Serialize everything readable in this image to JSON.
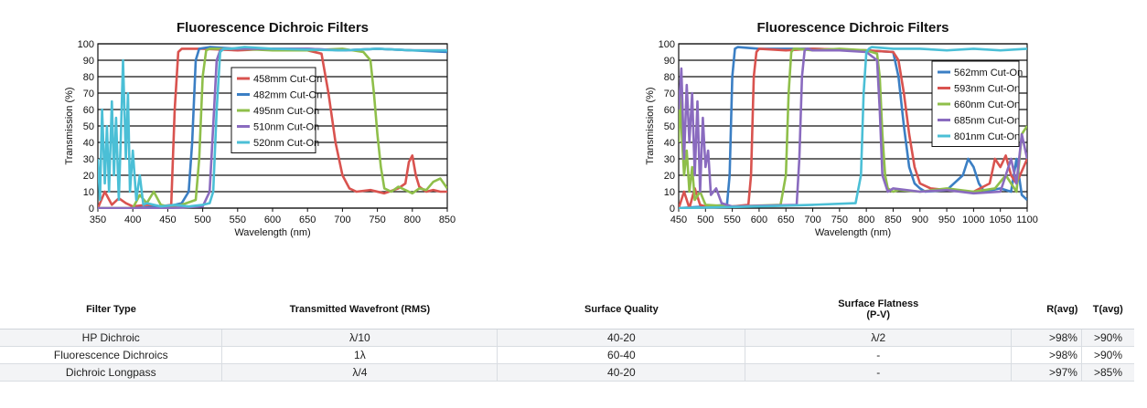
{
  "chart_data": [
    {
      "type": "line",
      "title": "Fluorescence Dichroic Filters",
      "xlabel": "Wavelength (nm)",
      "ylabel": "Transmission (%)",
      "xlim": [
        350,
        850
      ],
      "ylim": [
        0,
        100
      ],
      "xticks": [
        350,
        400,
        450,
        500,
        550,
        600,
        650,
        700,
        750,
        800,
        850
      ],
      "yticks": [
        0,
        10,
        20,
        30,
        40,
        50,
        60,
        70,
        80,
        90,
        100
      ],
      "grid": "horizontal",
      "legend_position": "upper-center",
      "series": [
        {
          "name": "458mm Cut-On",
          "color": "#d9534f",
          "x": [
            350,
            360,
            370,
            380,
            390,
            400,
            420,
            440,
            455,
            460,
            465,
            470,
            500,
            550,
            600,
            650,
            670,
            680,
            690,
            700,
            710,
            720,
            740,
            760,
            780,
            790,
            795,
            800,
            805,
            810,
            820,
            830,
            840,
            850
          ],
          "y": [
            0,
            10,
            2,
            6,
            3,
            1,
            2,
            1,
            2,
            60,
            95,
            97,
            97,
            96,
            97,
            96,
            94,
            70,
            40,
            20,
            12,
            10,
            11,
            9,
            12,
            15,
            28,
            32,
            20,
            13,
            10,
            11,
            10,
            10
          ]
        },
        {
          "name": "482mm Cut-On",
          "color": "#3b7fc4",
          "x": [
            350,
            400,
            450,
            470,
            480,
            485,
            490,
            495,
            510,
            550,
            650,
            700,
            750,
            800,
            850
          ],
          "y": [
            0,
            0,
            1,
            3,
            10,
            40,
            90,
            97,
            98,
            97,
            97,
            96,
            97,
            96,
            95
          ]
        },
        {
          "name": "495nm Cut-On",
          "color": "#8fbf4a",
          "x": [
            350,
            400,
            410,
            420,
            430,
            440,
            450,
            470,
            490,
            495,
            500,
            505,
            510,
            550,
            600,
            650,
            700,
            730,
            740,
            745,
            750,
            755,
            760,
            770,
            780,
            800,
            810,
            820,
            830,
            840,
            850
          ],
          "y": [
            0,
            0,
            8,
            3,
            10,
            2,
            1,
            2,
            5,
            30,
            80,
            96,
            97,
            97,
            96,
            96,
            97,
            95,
            90,
            70,
            45,
            25,
            12,
            10,
            13,
            9,
            12,
            11,
            16,
            18,
            12
          ]
        },
        {
          "name": "510nm Cut-On",
          "color": "#8a6bbf",
          "x": [
            350,
            400,
            450,
            500,
            510,
            515,
            520,
            525,
            530,
            560,
            650,
            700,
            750,
            800,
            850
          ],
          "y": [
            0,
            0,
            0,
            1,
            10,
            50,
            90,
            96,
            97,
            97,
            97,
            96,
            97,
            96,
            96
          ]
        },
        {
          "name": "520nm Cut-On",
          "color": "#4bbfd6",
          "x": [
            350,
            353,
            356,
            360,
            363,
            366,
            370,
            373,
            376,
            380,
            383,
            386,
            390,
            393,
            396,
            400,
            405,
            410,
            415,
            420,
            440,
            460,
            480,
            500,
            510,
            515,
            520,
            525,
            530,
            540,
            560,
            600,
            700,
            750,
            800,
            850
          ],
          "y": [
            30,
            5,
            60,
            15,
            50,
            10,
            65,
            20,
            55,
            5,
            45,
            90,
            30,
            70,
            10,
            35,
            5,
            20,
            2,
            3,
            1,
            2,
            1,
            2,
            3,
            10,
            60,
            95,
            97,
            97,
            98,
            97,
            96,
            97,
            96,
            96
          ]
        }
      ]
    },
    {
      "type": "line",
      "title": "Fluorescence Dichroic Filters",
      "xlabel": "Wavelength (nm)",
      "ylabel": "Transmission (%)",
      "xlim": [
        450,
        1100
      ],
      "ylim": [
        0,
        100
      ],
      "xticks": [
        450,
        500,
        550,
        600,
        650,
        700,
        750,
        800,
        850,
        900,
        950,
        1000,
        1050,
        1100
      ],
      "yticks": [
        0,
        10,
        20,
        30,
        40,
        50,
        60,
        70,
        80,
        90,
        100
      ],
      "grid": "horizontal",
      "legend_position": "upper-right",
      "series": [
        {
          "name": "562mm Cut-On",
          "color": "#3b7fc4",
          "x": [
            450,
            500,
            540,
            545,
            550,
            555,
            560,
            600,
            700,
            800,
            850,
            860,
            870,
            880,
            890,
            900,
            910,
            950,
            980,
            990,
            1000,
            1010,
            1020,
            1050,
            1070,
            1080,
            1090,
            1100
          ],
          "y": [
            0,
            1,
            2,
            20,
            80,
            97,
            98,
            97,
            97,
            96,
            95,
            80,
            50,
            25,
            15,
            12,
            10,
            11,
            20,
            30,
            25,
            15,
            10,
            12,
            10,
            30,
            8,
            5
          ]
        },
        {
          "name": "593nm Cut-On",
          "color": "#d9534f",
          "x": [
            450,
            460,
            470,
            480,
            490,
            500,
            550,
            580,
            585,
            590,
            595,
            600,
            650,
            700,
            800,
            850,
            860,
            870,
            880,
            890,
            900,
            920,
            950,
            1000,
            1030,
            1040,
            1050,
            1060,
            1070,
            1080,
            1100
          ],
          "y": [
            0,
            10,
            0,
            12,
            2,
            1,
            1,
            2,
            20,
            80,
            95,
            97,
            96,
            97,
            96,
            95,
            90,
            70,
            45,
            25,
            15,
            12,
            11,
            10,
            15,
            30,
            25,
            32,
            20,
            15,
            30
          ]
        },
        {
          "name": "660nm Cut-On",
          "color": "#8fbf4a",
          "x": [
            450,
            452,
            455,
            460,
            465,
            470,
            475,
            480,
            490,
            500,
            550,
            640,
            650,
            655,
            660,
            665,
            670,
            700,
            750,
            800,
            820,
            825,
            830,
            835,
            840,
            850,
            860,
            900,
            950,
            1000,
            1040,
            1060,
            1080,
            1090,
            1100
          ],
          "y": [
            40,
            70,
            50,
            20,
            35,
            10,
            25,
            5,
            10,
            2,
            1,
            2,
            20,
            70,
            95,
            97,
            97,
            96,
            97,
            96,
            94,
            80,
            45,
            20,
            12,
            10,
            11,
            10,
            12,
            10,
            12,
            20,
            10,
            45,
            50
          ]
        },
        {
          "name": "685nm Cut-On",
          "color": "#8a6bbf",
          "x": [
            450,
            455,
            460,
            465,
            470,
            475,
            480,
            485,
            490,
            495,
            500,
            505,
            510,
            520,
            530,
            550,
            670,
            675,
            680,
            685,
            690,
            700,
            750,
            800,
            820,
            825,
            830,
            840,
            850,
            900,
            950,
            1000,
            1050,
            1060,
            1070,
            1080,
            1090,
            1100
          ],
          "y": [
            60,
            85,
            30,
            75,
            40,
            70,
            20,
            65,
            10,
            55,
            25,
            35,
            8,
            12,
            3,
            1,
            2,
            30,
            80,
            96,
            97,
            96,
            96,
            95,
            90,
            60,
            20,
            10,
            12,
            10,
            11,
            9,
            10,
            20,
            30,
            15,
            45,
            30
          ]
        },
        {
          "name": "801nm Cut-On",
          "color": "#4bbfd6",
          "x": [
            450,
            600,
            700,
            780,
            790,
            795,
            800,
            805,
            810,
            850,
            900,
            950,
            1000,
            1050,
            1100
          ],
          "y": [
            0,
            1,
            2,
            3,
            20,
            70,
            95,
            97,
            98,
            97,
            97,
            96,
            97,
            96,
            97
          ]
        }
      ]
    }
  ],
  "table": {
    "headers": {
      "filter_type": "Filter Type",
      "wavefront": "Transmitted Wavefront (RMS)",
      "surface_quality": "Surface Quality",
      "flatness_line1": "Surface Flatness",
      "flatness_line2": "(P-V)",
      "ravg": "R(avg)",
      "tavg": "T(avg)"
    },
    "rows": [
      {
        "filter_type": "HP Dichroic",
        "wavefront": "λ/10",
        "surface_quality": "40-20",
        "flatness": "λ/2",
        "ravg": ">98%",
        "tavg": ">90%"
      },
      {
        "filter_type": "Fluorescence Dichroics",
        "wavefront": "1λ",
        "surface_quality": "60-40",
        "flatness": "-",
        "ravg": ">98%",
        "tavg": ">90%"
      },
      {
        "filter_type": "Dichroic Longpass",
        "wavefront": "λ/4",
        "surface_quality": "40-20",
        "flatness": "-",
        "ravg": ">97%",
        "tavg": ">85%"
      }
    ]
  }
}
